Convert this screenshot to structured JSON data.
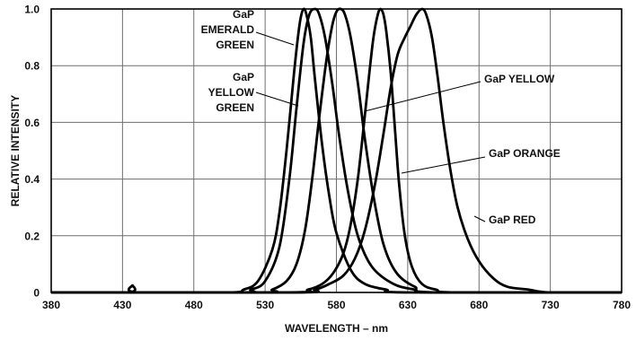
{
  "chart_data": {
    "type": "line",
    "title": "",
    "xlabel": "WAVELENGTH – nm",
    "ylabel": "RELATIVE INTENSITY",
    "xlim": [
      380,
      780
    ],
    "ylim": [
      0,
      1.0
    ],
    "x_ticks": [
      "380",
      "430",
      "480",
      "530",
      "580",
      "630",
      "680",
      "730",
      "780"
    ],
    "y_ticks": [
      "0",
      "0.2",
      "0.4",
      "0.6",
      "0.8",
      "1.0"
    ],
    "grid": true,
    "series": [
      {
        "name": "GaP EMERALD GREEN",
        "label_lines": [
          "GaP",
          "EMERALD",
          "GREEN"
        ],
        "peak": 557,
        "points": [
          [
            380,
            0
          ],
          [
            434,
            0
          ],
          [
            437,
            0.025
          ],
          [
            440,
            0
          ],
          [
            505,
            0
          ],
          [
            515,
            0.01
          ],
          [
            525,
            0.04
          ],
          [
            535,
            0.15
          ],
          [
            540,
            0.28
          ],
          [
            545,
            0.5
          ],
          [
            550,
            0.76
          ],
          [
            553,
            0.9
          ],
          [
            555,
            0.97
          ],
          [
            557,
            1.0
          ],
          [
            559,
            0.98
          ],
          [
            562,
            0.9
          ],
          [
            565,
            0.75
          ],
          [
            570,
            0.52
          ],
          [
            575,
            0.34
          ],
          [
            580,
            0.21
          ],
          [
            590,
            0.08
          ],
          [
            600,
            0.03
          ],
          [
            615,
            0.01
          ],
          [
            630,
            0
          ],
          [
            780,
            0
          ]
        ]
      },
      {
        "name": "GaP YELLOW GREEN",
        "label_lines": [
          "GaP",
          "YELLOW",
          "GREEN"
        ],
        "peak": 565,
        "points": [
          [
            380,
            0
          ],
          [
            510,
            0
          ],
          [
            520,
            0.01
          ],
          [
            530,
            0.04
          ],
          [
            540,
            0.16
          ],
          [
            547,
            0.4
          ],
          [
            552,
            0.65
          ],
          [
            557,
            0.88
          ],
          [
            561,
            0.98
          ],
          [
            565,
            1.0
          ],
          [
            568,
            0.98
          ],
          [
            572,
            0.9
          ],
          [
            577,
            0.74
          ],
          [
            582,
            0.55
          ],
          [
            588,
            0.36
          ],
          [
            595,
            0.2
          ],
          [
            605,
            0.09
          ],
          [
            620,
            0.03
          ],
          [
            635,
            0.01
          ],
          [
            650,
            0
          ],
          [
            780,
            0
          ]
        ]
      },
      {
        "name": "GaP YELLOW",
        "label_lines": [
          "GaP YELLOW"
        ],
        "peak": 583,
        "points": [
          [
            380,
            0
          ],
          [
            525,
            0
          ],
          [
            535,
            0.01
          ],
          [
            545,
            0.04
          ],
          [
            552,
            0.1
          ],
          [
            558,
            0.22
          ],
          [
            563,
            0.4
          ],
          [
            568,
            0.62
          ],
          [
            573,
            0.82
          ],
          [
            577,
            0.94
          ],
          [
            580,
            0.99
          ],
          [
            583,
            1.0
          ],
          [
            586,
            0.98
          ],
          [
            590,
            0.9
          ],
          [
            595,
            0.74
          ],
          [
            600,
            0.54
          ],
          [
            606,
            0.34
          ],
          [
            613,
            0.17
          ],
          [
            622,
            0.07
          ],
          [
            635,
            0.02
          ],
          [
            650,
            0
          ],
          [
            780,
            0
          ]
        ]
      },
      {
        "name": "GaP ORANGE",
        "label_lines": [
          "GaP ORANGE"
        ],
        "peak": 611,
        "points": [
          [
            380,
            0
          ],
          [
            545,
            0
          ],
          [
            560,
            0.01
          ],
          [
            570,
            0.03
          ],
          [
            578,
            0.07
          ],
          [
            585,
            0.14
          ],
          [
            590,
            0.24
          ],
          [
            595,
            0.4
          ],
          [
            599,
            0.58
          ],
          [
            603,
            0.77
          ],
          [
            606,
            0.9
          ],
          [
            609,
            0.98
          ],
          [
            611,
            1.0
          ],
          [
            613,
            0.98
          ],
          [
            615,
            0.92
          ],
          [
            618,
            0.78
          ],
          [
            621,
            0.58
          ],
          [
            624,
            0.38
          ],
          [
            628,
            0.2
          ],
          [
            633,
            0.09
          ],
          [
            640,
            0.03
          ],
          [
            650,
            0.01
          ],
          [
            665,
            0
          ],
          [
            780,
            0
          ]
        ]
      },
      {
        "name": "GaP RED",
        "label_lines": [
          "GaP RED"
        ],
        "peak": 640,
        "points": [
          [
            380,
            0
          ],
          [
            550,
            0
          ],
          [
            565,
            0.01
          ],
          [
            575,
            0.03
          ],
          [
            585,
            0.06
          ],
          [
            593,
            0.12
          ],
          [
            600,
            0.22
          ],
          [
            607,
            0.38
          ],
          [
            613,
            0.56
          ],
          [
            618,
            0.72
          ],
          [
            623,
            0.84
          ],
          [
            628,
            0.9
          ],
          [
            632,
            0.94
          ],
          [
            636,
            0.98
          ],
          [
            640,
            1.0
          ],
          [
            643,
            0.98
          ],
          [
            647,
            0.9
          ],
          [
            651,
            0.76
          ],
          [
            655,
            0.6
          ],
          [
            660,
            0.43
          ],
          [
            665,
            0.3
          ],
          [
            672,
            0.19
          ],
          [
            680,
            0.11
          ],
          [
            690,
            0.05
          ],
          [
            700,
            0.02
          ],
          [
            715,
            0.01
          ],
          [
            730,
            0
          ],
          [
            780,
            0
          ]
        ]
      }
    ],
    "annotations": [
      {
        "series": 0,
        "text_x": 283,
        "text_y": 20,
        "line_height": 17,
        "align": "end",
        "leader": [
          [
            285,
            36
          ],
          [
            327,
            50
          ]
        ]
      },
      {
        "series": 1,
        "text_x": 283,
        "text_y": 90,
        "line_height": 17,
        "align": "end",
        "leader": [
          [
            285,
            103
          ],
          [
            332,
            118
          ]
        ]
      },
      {
        "series": 2,
        "text_x": 539,
        "text_y": 92,
        "line_height": 17,
        "align": "start",
        "leader": [
          [
            535,
            91
          ],
          [
            406,
            124
          ]
        ]
      },
      {
        "series": 3,
        "text_x": 544,
        "text_y": 175,
        "line_height": 17,
        "align": "start",
        "leader": [
          [
            540,
            175
          ],
          [
            447,
            193
          ]
        ]
      },
      {
        "series": 4,
        "text_x": 544,
        "text_y": 249,
        "line_height": 17,
        "align": "start",
        "leader": [
          [
            540,
            247
          ],
          [
            528,
            241
          ]
        ]
      }
    ]
  }
}
